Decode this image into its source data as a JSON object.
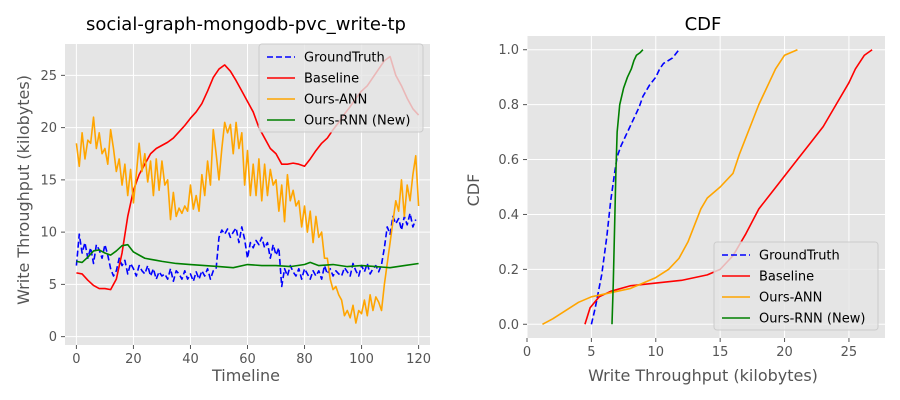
{
  "chart_data": [
    {
      "type": "line",
      "title": "social-graph-mongodb-pvc_write-tp",
      "xlabel": "Timeline",
      "ylabel": "Write Throughput (kilobytes)",
      "xlim": [
        -4,
        124
      ],
      "ylim": [
        -0.8,
        28
      ],
      "xticks": [
        0,
        20,
        40,
        60,
        80,
        100,
        120
      ],
      "yticks": [
        0,
        5,
        10,
        15,
        20,
        25
      ],
      "grid": true,
      "legend_position": "top-right",
      "colors": {
        "GroundTruth": "#0000ff",
        "Baseline": "#ff0000",
        "Ours-ANN": "#ffa500",
        "Ours-RNN (New)": "#008000"
      },
      "series": [
        {
          "name": "GroundTruth",
          "style": "dashed",
          "values": [
            6.8,
            9.8,
            8.0,
            9.0,
            7.5,
            8.5,
            7.0,
            8.8,
            8.3,
            7.5,
            8.8,
            7.8,
            6.5,
            5.8,
            6.3,
            7.5,
            6.8,
            7.3,
            6.0,
            7.0,
            6.5,
            5.8,
            6.8,
            6.3,
            6.0,
            6.8,
            5.8,
            6.5,
            5.5,
            6.2,
            5.8,
            6.0,
            5.5,
            6.5,
            5.3,
            6.3,
            6.0,
            5.5,
            6.3,
            5.5,
            6.0,
            5.3,
            6.2,
            5.5,
            6.3,
            5.8,
            6.5,
            5.5,
            6.3,
            6.5,
            9.5,
            10.2,
            9.8,
            10.3,
            9.5,
            10.0,
            10.4,
            9.0,
            10.5,
            9.3,
            7.5,
            9.0,
            8.5,
            9.2,
            8.8,
            9.5,
            8.5,
            9.0,
            7.5,
            8.8,
            7.8,
            8.5,
            4.8,
            6.5,
            5.8,
            6.8,
            6.2,
            5.8,
            6.5,
            5.5,
            6.5,
            6.0,
            5.5,
            6.3,
            5.8,
            6.3,
            5.5,
            6.8,
            6.0,
            6.5,
            5.8,
            6.3,
            6.0,
            5.8,
            6.6,
            6.2,
            5.8,
            7.0,
            6.3,
            5.8,
            6.8,
            6.2,
            7.0,
            6.0,
            6.5,
            6.8,
            6.2,
            6.9,
            8.5,
            10.5,
            9.8,
            11.5,
            10.8,
            11.3,
            10.2,
            11.5,
            10.7,
            11.8,
            10.5,
            11.2
          ]
        },
        {
          "name": "Baseline",
          "style": "solid",
          "x": [
            0,
            2,
            4,
            6,
            8,
            10,
            12,
            14,
            16,
            18,
            20,
            22,
            24,
            26,
            28,
            30,
            32,
            34,
            36,
            38,
            40,
            42,
            44,
            46,
            48,
            50,
            52,
            54,
            56,
            58,
            60,
            62,
            64,
            66,
            68,
            70,
            72,
            74,
            76,
            78,
            80,
            82,
            84,
            86,
            88,
            90,
            92,
            94,
            96,
            98,
            100,
            102,
            104,
            106,
            108,
            110,
            112,
            114,
            116,
            118,
            120
          ],
          "values": [
            6.1,
            6.0,
            5.4,
            4.9,
            4.6,
            4.6,
            4.5,
            5.5,
            8.0,
            11.5,
            14.0,
            15.5,
            16.5,
            17.5,
            18.0,
            18.3,
            18.6,
            19.0,
            19.6,
            20.2,
            20.9,
            21.5,
            22.3,
            23.5,
            24.8,
            25.6,
            26.0,
            25.4,
            24.5,
            23.5,
            22.5,
            21.5,
            20.0,
            19.0,
            18.0,
            17.5,
            16.5,
            16.5,
            16.6,
            16.5,
            16.3,
            17.0,
            17.8,
            18.5,
            19.0,
            19.8,
            20.5,
            21.3,
            22.0,
            22.8,
            23.5,
            24.0,
            24.8,
            25.6,
            26.4,
            26.8,
            25.0,
            24.0,
            22.8,
            21.8,
            21.2
          ]
        },
        {
          "name": "Ours-ANN",
          "style": "solid",
          "values": [
            18.5,
            16.3,
            19.5,
            17.0,
            18.8,
            18.5,
            21.0,
            18.0,
            19.5,
            17.5,
            18.0,
            16.5,
            19.8,
            18.0,
            15.8,
            17.0,
            14.5,
            16.5,
            13.5,
            16.0,
            12.8,
            15.5,
            18.5,
            15.8,
            17.5,
            14.8,
            16.8,
            13.5,
            17.0,
            14.0,
            16.8,
            14.5,
            15.0,
            11.2,
            13.8,
            11.5,
            12.3,
            11.8,
            12.5,
            12.0,
            14.5,
            12.2,
            13.5,
            12.0,
            15.5,
            13.5,
            16.8,
            14.5,
            19.8,
            17.5,
            15.0,
            18.0,
            20.5,
            19.5,
            20.3,
            17.5,
            20.5,
            18.0,
            19.5,
            14.5,
            17.8,
            13.5,
            16.5,
            13.5,
            17.0,
            13.0,
            16.5,
            13.5,
            16.0,
            14.5,
            15.0,
            12.0,
            14.5,
            11.0,
            15.5,
            13.0,
            14.0,
            12.5,
            13.0,
            10.5,
            12.5,
            10.0,
            12.0,
            9.0,
            11.5,
            9.5,
            10.0,
            7.5,
            7.5,
            5.5,
            4.5,
            4.8,
            4.0,
            3.5,
            2.0,
            2.5,
            1.8,
            3.0,
            1.3,
            2.5,
            2.2,
            3.5,
            2.0,
            4.0,
            2.5,
            3.8,
            3.3,
            2.5,
            5.0,
            7.0,
            9.0,
            11.0,
            13.0,
            12.0,
            15.0,
            11.5,
            14.5,
            13.0,
            15.5,
            17.3,
            12.5
          ]
        },
        {
          "name": "Ours-RNN (New)",
          "style": "solid",
          "x": [
            0,
            2,
            4,
            6,
            8,
            10,
            12,
            14,
            16,
            18,
            20,
            22,
            24,
            26,
            28,
            30,
            35,
            40,
            45,
            50,
            55,
            60,
            65,
            70,
            75,
            80,
            82,
            85,
            90,
            95,
            100,
            105,
            110,
            115,
            120
          ],
          "values": [
            7.2,
            7.1,
            7.6,
            8.2,
            8.3,
            8.0,
            7.8,
            8.2,
            8.7,
            8.8,
            8.1,
            7.8,
            7.5,
            7.4,
            7.3,
            7.2,
            7.0,
            6.9,
            6.8,
            6.7,
            6.6,
            6.9,
            6.8,
            6.8,
            6.7,
            6.9,
            7.1,
            6.8,
            6.9,
            6.7,
            6.8,
            6.7,
            6.6,
            6.8,
            7.0
          ]
        }
      ]
    },
    {
      "type": "line",
      "title": "CDF",
      "xlabel": "Write Throughput (kilobytes)",
      "ylabel": "CDF",
      "xlim": [
        0,
        27.8
      ],
      "ylim": [
        -0.05,
        1.05
      ],
      "xticks": [
        0,
        5,
        10,
        15,
        20,
        25
      ],
      "yticks": [
        0.0,
        0.2,
        0.4,
        0.6,
        0.8,
        1.0
      ],
      "grid": true,
      "legend_position": "bottom-right",
      "series": [
        {
          "name": "GroundTruth",
          "style": "dashed",
          "x": [
            5.0,
            5.3,
            5.8,
            6.2,
            6.5,
            6.8,
            7.0,
            7.3,
            7.8,
            8.3,
            8.7,
            9.0,
            9.5,
            10.0,
            10.3,
            10.6,
            11.3,
            11.8
          ],
          "y": [
            0.0,
            0.06,
            0.18,
            0.32,
            0.45,
            0.55,
            0.61,
            0.65,
            0.7,
            0.75,
            0.79,
            0.83,
            0.87,
            0.9,
            0.93,
            0.95,
            0.97,
            1.0
          ]
        },
        {
          "name": "Baseline",
          "style": "solid",
          "x": [
            4.5,
            4.9,
            5.6,
            6.5,
            8.0,
            10.0,
            12.0,
            14.0,
            15.0,
            16.0,
            17.0,
            18.0,
            19.0,
            20.0,
            21.0,
            22.0,
            23.0,
            24.0,
            25.0,
            25.5,
            26.2,
            26.8
          ],
          "y": [
            0.0,
            0.06,
            0.1,
            0.12,
            0.14,
            0.15,
            0.16,
            0.18,
            0.2,
            0.25,
            0.33,
            0.42,
            0.48,
            0.54,
            0.6,
            0.66,
            0.72,
            0.8,
            0.88,
            0.93,
            0.98,
            1.0
          ]
        },
        {
          "name": "Ours-ANN",
          "style": "solid",
          "x": [
            1.2,
            2.0,
            3.0,
            4.0,
            5.0,
            6.0,
            7.0,
            8.0,
            9.0,
            10.0,
            11.0,
            11.8,
            12.5,
            13.0,
            13.5,
            14.0,
            15.0,
            16.0,
            16.5,
            17.0,
            17.5,
            18.0,
            18.8,
            19.3,
            20.0,
            21.0
          ],
          "y": [
            0.0,
            0.02,
            0.05,
            0.08,
            0.1,
            0.11,
            0.12,
            0.13,
            0.15,
            0.17,
            0.2,
            0.24,
            0.3,
            0.36,
            0.42,
            0.46,
            0.5,
            0.55,
            0.62,
            0.68,
            0.74,
            0.8,
            0.88,
            0.93,
            0.98,
            1.0
          ]
        },
        {
          "name": "Ours-RNN (New)",
          "style": "solid",
          "x": [
            6.6,
            6.7,
            6.8,
            6.9,
            7.0,
            7.2,
            7.5,
            7.8,
            8.1,
            8.3,
            8.5,
            8.8,
            9.0
          ],
          "y": [
            0.0,
            0.15,
            0.35,
            0.55,
            0.7,
            0.8,
            0.86,
            0.9,
            0.93,
            0.96,
            0.98,
            0.99,
            1.0
          ]
        }
      ]
    }
  ]
}
